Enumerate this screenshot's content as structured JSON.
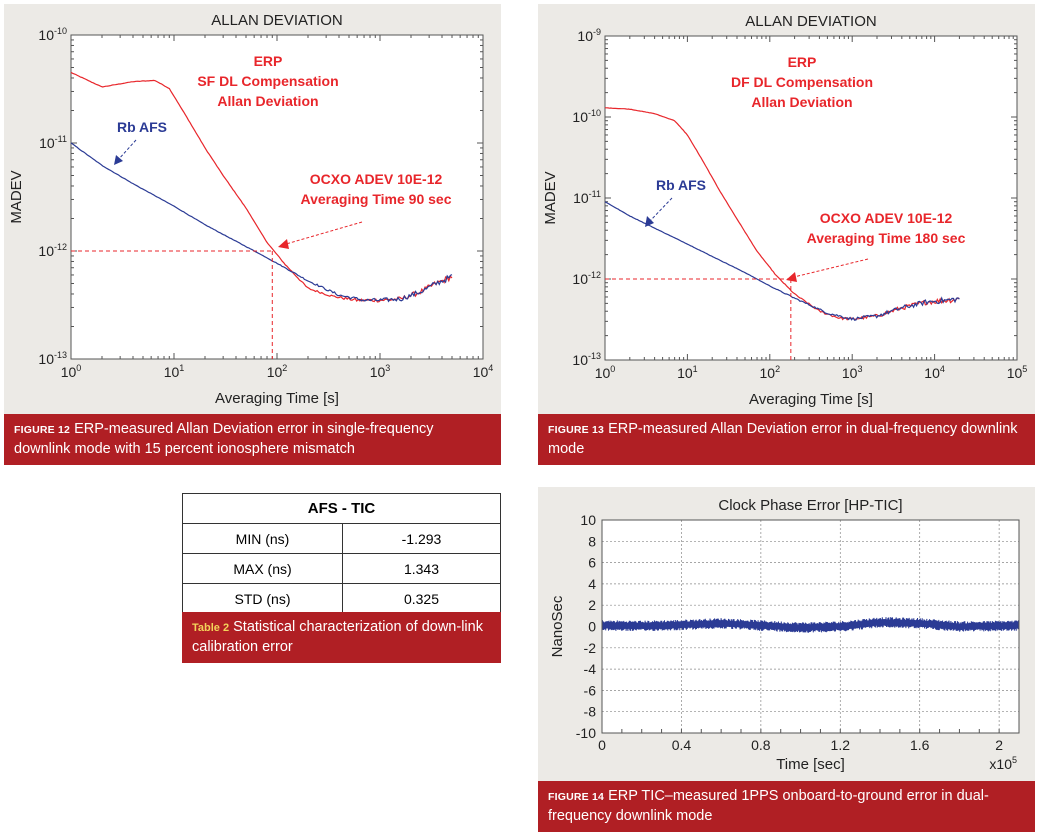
{
  "colors": {
    "red": "#e8262b",
    "blue": "#2b3b95",
    "caption_bg": "#b01f24",
    "panel_bg": "#eceae6"
  },
  "figure12": {
    "caption_tag": "FIGURE 12",
    "caption_text": "ERP-measured Allan Deviation error in single-frequency downlink mode with 15 percent ionosphere mismatch",
    "chart_data": {
      "type": "line",
      "title": "ALLAN DEVIATION",
      "xlabel": "Averaging Time [s]",
      "ylabel": "MADEV",
      "xscale": "log",
      "yscale": "log",
      "xlim": [
        1,
        10000
      ],
      "ylim": [
        1e-13,
        1e-10
      ],
      "x_tick_labels": [
        "10^0",
        "10^1",
        "10^2",
        "10^3",
        "10^4"
      ],
      "y_tick_labels": [
        "10^-10",
        "10^-11",
        "10^-12",
        "10^-13"
      ],
      "grid": false,
      "series": [
        {
          "name": "ERP SF DL Compensation Allan Deviation",
          "color": "#e8262b",
          "x": [
            1,
            2,
            4,
            6.5,
            9,
            13,
            20,
            30,
            50,
            80,
            120,
            200,
            350,
            600,
            1000,
            1600,
            2500,
            3500,
            5000
          ],
          "y": [
            4.5e-11,
            3.3e-11,
            3.7e-11,
            3.8e-11,
            3.2e-11,
            1.8e-11,
            9e-12,
            5e-12,
            2.5e-12,
            1.2e-12,
            7.5e-13,
            4.5e-13,
            3.8e-13,
            3.5e-13,
            3.5e-13,
            3.6e-13,
            4.2e-13,
            5e-13,
            5.8e-13
          ]
        },
        {
          "name": "Rb AFS",
          "color": "#2b3b95",
          "x": [
            1,
            2,
            4,
            10,
            20,
            50,
            100,
            200,
            400,
            700,
            1000,
            1600,
            2500,
            3500,
            5000
          ],
          "y": [
            1e-11,
            6.2e-12,
            4.2e-12,
            2.6e-12,
            1.75e-12,
            1.1e-12,
            7.7e-13,
            5.3e-13,
            3.9e-13,
            3.5e-13,
            3.5e-13,
            3.6e-13,
            4.2e-13,
            5e-13,
            5.8e-13
          ]
        }
      ],
      "annotations": {
        "erp_label": [
          "ERP",
          "SF DL Compensation",
          "Allan Deviation"
        ],
        "rb_label": "Rb AFS",
        "ocxo_label": [
          "OCXO ADEV 10E-12",
          "Averaging Time 90 sec"
        ],
        "marker_x": 90,
        "marker_y": 1e-12
      }
    }
  },
  "figure13": {
    "caption_tag": "FIGURE 13",
    "caption_text": "ERP-measured Allan Deviation error in dual-frequency downlink mode",
    "chart_data": {
      "type": "line",
      "title": "ALLAN DEVIATION",
      "xlabel": "Averaging Time [s]",
      "ylabel": "MADEV",
      "xscale": "log",
      "yscale": "log",
      "xlim": [
        1,
        100000
      ],
      "ylim": [
        1e-13,
        1e-09
      ],
      "x_tick_labels": [
        "10^0",
        "10^1",
        "10^2",
        "10^3",
        "10^4",
        "10^5"
      ],
      "y_tick_labels": [
        "10^-9",
        "10^-10",
        "10^-11",
        "10^-12",
        "10^-13"
      ],
      "grid": false,
      "series": [
        {
          "name": "ERP DF DL Compensation Allan Deviation",
          "color": "#e8262b",
          "x": [
            1,
            2,
            4,
            7,
            10,
            15,
            25,
            40,
            70,
            120,
            200,
            400,
            700,
            1000,
            2000,
            4000,
            8000,
            15000,
            20000
          ],
          "y": [
            1.3e-10,
            1.25e-10,
            1.1e-10,
            9e-11,
            6e-11,
            3e-11,
            1.2e-11,
            5.5e-12,
            2.2e-12,
            1.1e-12,
            6.5e-13,
            4e-13,
            3.3e-13,
            3.2e-13,
            3.5e-13,
            4.4e-13,
            5.2e-13,
            5.5e-13,
            5.7e-13
          ]
        },
        {
          "name": "Rb AFS",
          "color": "#2b3b95",
          "x": [
            1,
            2,
            5,
            10,
            20,
            50,
            100,
            200,
            500,
            1000,
            2000,
            4000,
            8000,
            15000,
            20000
          ],
          "y": [
            9e-12,
            6e-12,
            3.8e-12,
            2.7e-12,
            1.9e-12,
            1.2e-12,
            8.2e-13,
            5.8e-13,
            3.8e-13,
            3.2e-13,
            3.5e-13,
            4.4e-13,
            5.2e-13,
            5.5e-13,
            5.7e-13
          ]
        }
      ],
      "annotations": {
        "erp_label": [
          "ERP",
          "DF DL Compensation",
          "Allan Deviation"
        ],
        "rb_label": "Rb AFS",
        "ocxo_label": [
          "OCXO ADEV 10E-12",
          "Averaging Time 180 sec"
        ],
        "marker_x": 180,
        "marker_y": 1e-12
      }
    }
  },
  "table2": {
    "header": "AFS - TIC",
    "rows": [
      {
        "label": "MIN (ns)",
        "value": "-1.293"
      },
      {
        "label": "MAX (ns)",
        "value": "1.343"
      },
      {
        "label": "STD (ns)",
        "value": "0.325"
      }
    ],
    "caption_tag": "Table 2",
    "caption_text": "Statistical characterization of down-link calibration error"
  },
  "figure14": {
    "caption_tag": "FIGURE 14",
    "caption_text": "ERP TIC–measured 1PPS onboard-to-ground error in dual-frequency downlink mode",
    "chart_data": {
      "type": "line",
      "title": "Clock Phase Error [HP-TIC]",
      "xlabel": "Time [sec]",
      "ylabel": "NanoSec",
      "x_multiplier": "x10^5",
      "xlim": [
        0,
        2.1
      ],
      "ylim": [
        -10,
        10
      ],
      "x_ticks": [
        0,
        0.4,
        0.8,
        1.2,
        1.6,
        2
      ],
      "y_ticks": [
        10,
        8,
        6,
        4,
        2,
        0,
        -2,
        -4,
        -6,
        -8,
        -10
      ],
      "grid": true,
      "series": [
        {
          "name": "Clock Phase Error",
          "color": "#2b3b95",
          "x": [
            0,
            0.2,
            0.4,
            0.6,
            0.8,
            1.0,
            1.2,
            1.4,
            1.6,
            1.8,
            2.0,
            2.1
          ],
          "y": [
            0.1,
            0.05,
            0.15,
            0.3,
            0.1,
            -0.1,
            0.0,
            0.4,
            0.3,
            0.0,
            0.05,
            0.1
          ],
          "band": 0.5
        }
      ]
    }
  }
}
